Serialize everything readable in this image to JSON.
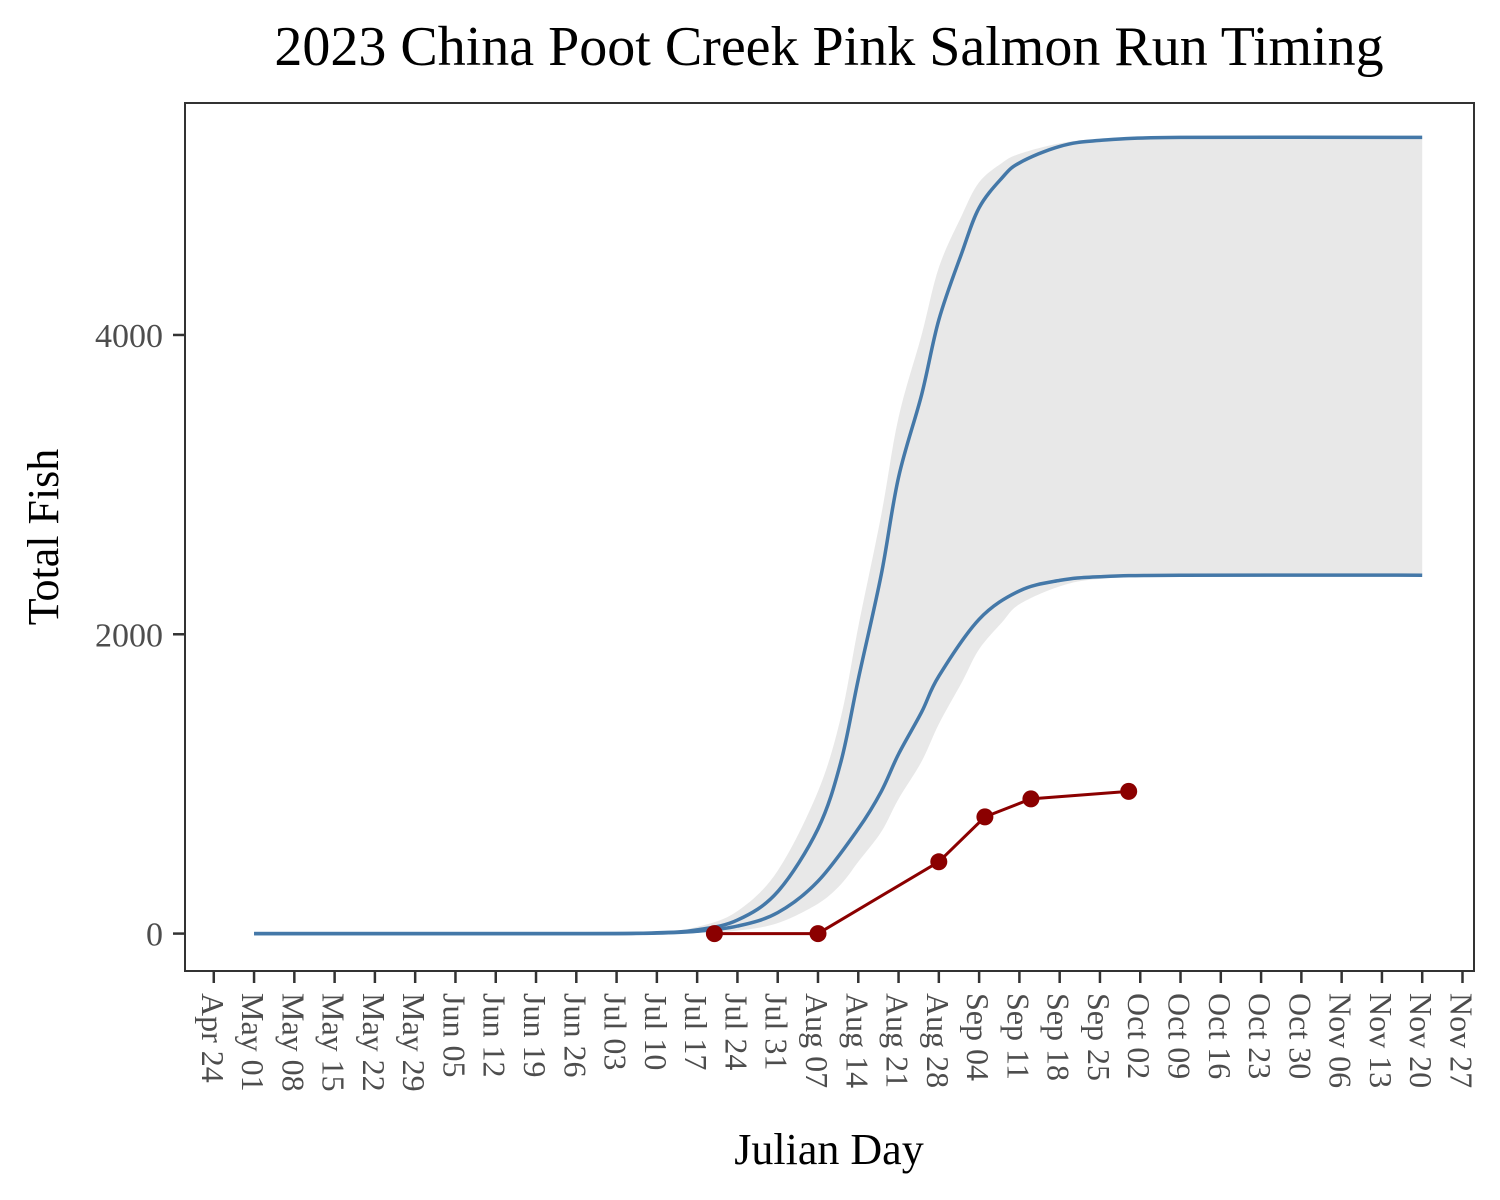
{
  "chart_data": {
    "type": "line",
    "title": "2023 China Poot Creek Pink Salmon Run Timing",
    "xlabel": "Julian Day",
    "ylabel": "Total Fish",
    "xlim": [
      "2023-04-19",
      "2023-11-29"
    ],
    "ylim": [
      -250,
      5550
    ],
    "y_ticks": [
      0,
      2000,
      4000
    ],
    "x_ticks": [
      "Apr 24",
      "May 01",
      "May 08",
      "May 15",
      "May 22",
      "May 29",
      "Jun 05",
      "Jun 12",
      "Jun 19",
      "Jun 26",
      "Jul 03",
      "Jul 10",
      "Jul 17",
      "Jul 24",
      "Jul 31",
      "Aug 07",
      "Aug 14",
      "Aug 21",
      "Aug 28",
      "Sep 04",
      "Sep 11",
      "Sep 18",
      "Sep 25",
      "Oct 02",
      "Oct 09",
      "Oct 16",
      "Oct 23",
      "Oct 30",
      "Nov 06",
      "Nov 13",
      "Nov 20",
      "Nov 27"
    ],
    "grid": false,
    "legend": "none",
    "series": [
      {
        "role": "expected-upper",
        "color": "#4478a8",
        "x": [
          "2023-05-01",
          "2023-06-26",
          "2023-07-10",
          "2023-07-17",
          "2023-07-24",
          "2023-07-31",
          "2023-08-07",
          "2023-08-11",
          "2023-08-14",
          "2023-08-18",
          "2023-08-21",
          "2023-08-25",
          "2023-08-28",
          "2023-09-01",
          "2023-09-04",
          "2023-09-08",
          "2023-09-11",
          "2023-09-18",
          "2023-09-25",
          "2023-10-09",
          "2023-11-20"
        ],
        "y": [
          0,
          0,
          5,
          25,
          90,
          280,
          700,
          1150,
          1700,
          2400,
          3050,
          3600,
          4100,
          4550,
          4850,
          5050,
          5150,
          5260,
          5300,
          5320,
          5320
        ]
      },
      {
        "role": "expected-lower",
        "color": "#4478a8",
        "x": [
          "2023-05-01",
          "2023-06-26",
          "2023-07-10",
          "2023-07-17",
          "2023-07-24",
          "2023-07-31",
          "2023-08-07",
          "2023-08-14",
          "2023-08-18",
          "2023-08-21",
          "2023-08-25",
          "2023-08-28",
          "2023-09-04",
          "2023-09-11",
          "2023-09-18",
          "2023-09-25",
          "2023-10-09",
          "2023-11-20"
        ],
        "y": [
          0,
          0,
          3,
          15,
          50,
          140,
          350,
          700,
          950,
          1200,
          1480,
          1720,
          2100,
          2290,
          2360,
          2385,
          2395,
          2395
        ]
      },
      {
        "role": "observed",
        "color": "#8b0000",
        "x": [
          "2023-07-20",
          "2023-08-07",
          "2023-08-28",
          "2023-09-05",
          "2023-09-13",
          "2023-09-30"
        ],
        "y": [
          0,
          0,
          480,
          780,
          900,
          950
        ]
      }
    ],
    "band": {
      "color": "#e8e8e8",
      "x": [
        "2023-05-01",
        "2023-06-26",
        "2023-07-10",
        "2023-07-17",
        "2023-07-24",
        "2023-07-31",
        "2023-08-07",
        "2023-08-11",
        "2023-08-14",
        "2023-08-18",
        "2023-08-21",
        "2023-08-25",
        "2023-08-28",
        "2023-09-01",
        "2023-09-04",
        "2023-09-08",
        "2023-09-11",
        "2023-09-18",
        "2023-09-25",
        "2023-10-09",
        "2023-11-20"
      ],
      "upper": [
        0,
        0,
        10,
        45,
        150,
        420,
        950,
        1450,
        2050,
        2800,
        3450,
        4000,
        4450,
        4800,
        5020,
        5150,
        5210,
        5280,
        5310,
        5320,
        5320
      ],
      "lower": [
        0,
        0,
        0,
        5,
        20,
        70,
        200,
        330,
        480,
        680,
        900,
        1150,
        1400,
        1680,
        1900,
        2080,
        2200,
        2320,
        2370,
        2390,
        2395
      ]
    }
  }
}
